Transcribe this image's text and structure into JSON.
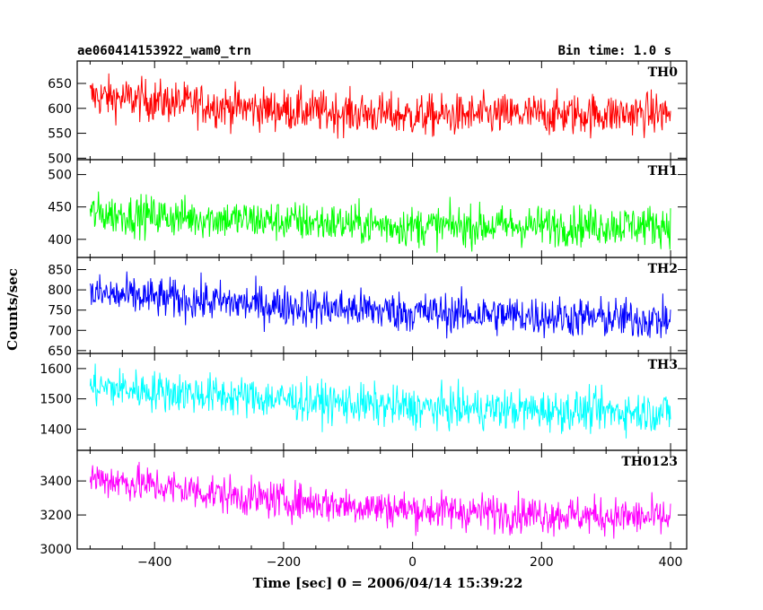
{
  "header": {
    "title": "ae060414153922_wam0_trn",
    "bin_time": "Bin time: 1.0 s"
  },
  "chart_data": {
    "type": "line",
    "xlabel": "Time [sec] 0 = 2006/04/14 15:39:22",
    "ylabel": "Counts/sec",
    "xlim": [
      -520,
      425
    ],
    "xticks": [
      -400,
      -200,
      0,
      200,
      400
    ],
    "bin_seconds": 1.0,
    "x_range": [
      -500,
      400
    ],
    "panels": [
      {
        "name": "TH0",
        "color": "#ff0000",
        "ylim": [
          497,
          695
        ],
        "yticks": [
          500,
          550,
          600,
          650
        ],
        "trend": [
          [
            -500,
            625
          ],
          [
            -250,
            600
          ],
          [
            0,
            585
          ],
          [
            400,
            590
          ]
        ],
        "noise": 38
      },
      {
        "name": "TH1",
        "color": "#00ff00",
        "ylim": [
          372,
          523
        ],
        "yticks": [
          400,
          450,
          500
        ],
        "trend": [
          [
            -500,
            440
          ],
          [
            -250,
            430
          ],
          [
            0,
            420
          ],
          [
            400,
            422
          ]
        ],
        "noise": 28
      },
      {
        "name": "TH2",
        "color": "#0000ff",
        "ylim": [
          643,
          880
        ],
        "yticks": [
          650,
          700,
          750,
          800,
          850
        ],
        "trend": [
          [
            -500,
            790
          ],
          [
            -250,
            765
          ],
          [
            0,
            745
          ],
          [
            400,
            725
          ]
        ],
        "noise": 45
      },
      {
        "name": "TH3",
        "color": "#00ffff",
        "ylim": [
          1330,
          1650
        ],
        "yticks": [
          1400,
          1500,
          1600
        ],
        "trend": [
          [
            -500,
            1540
          ],
          [
            -250,
            1505
          ],
          [
            0,
            1470
          ],
          [
            400,
            1455
          ]
        ],
        "noise": 60
      },
      {
        "name": "TH0123",
        "color": "#ff00ff",
        "ylim": [
          3000,
          3580
        ],
        "yticks": [
          3000,
          3200,
          3400
        ],
        "trend": [
          [
            -500,
            3420
          ],
          [
            -250,
            3300
          ],
          [
            0,
            3230
          ],
          [
            400,
            3180
          ]
        ],
        "noise": 100
      }
    ]
  }
}
